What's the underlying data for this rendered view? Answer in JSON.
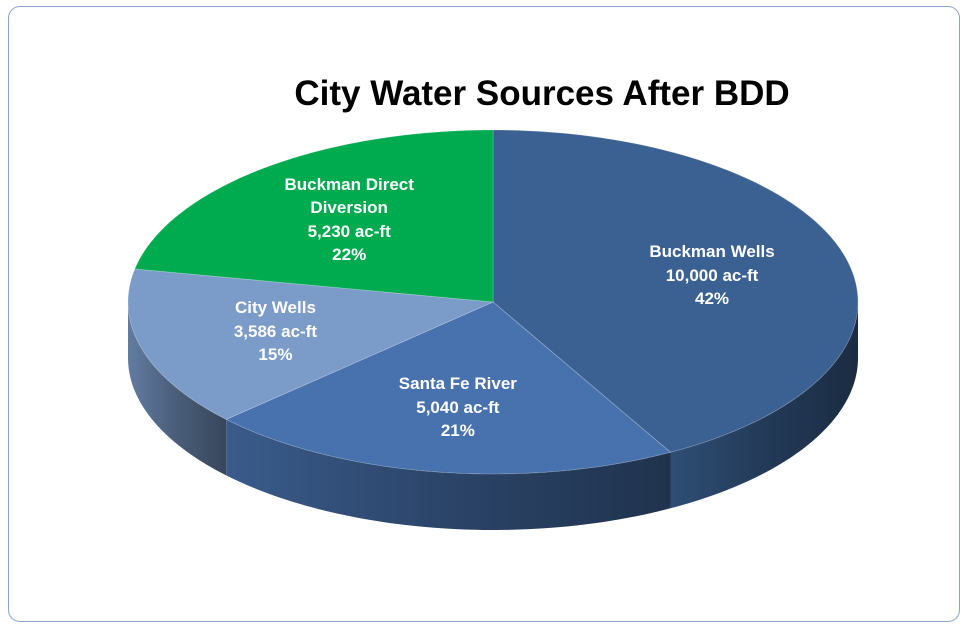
{
  "chart_data": {
    "type": "pie3d",
    "title": "City Water Sources After BDD",
    "categories": [
      "Buckman Wells",
      "Santa Fe River",
      "City Wells",
      "Buckman Direct Diversion"
    ],
    "values": [
      10000,
      5040,
      3586,
      5230
    ],
    "value_labels": [
      "10,000 ac-ft",
      "5,040 ac-ft",
      "3,586 ac-ft",
      "5,230 ac-ft"
    ],
    "percents": [
      42,
      21,
      15,
      22
    ],
    "percent_labels": [
      "42%",
      "21%",
      "15%",
      "22%"
    ],
    "colors": [
      "#3b6192",
      "#4872ae",
      "#7b9bc9",
      "#00aa4f"
    ]
  }
}
